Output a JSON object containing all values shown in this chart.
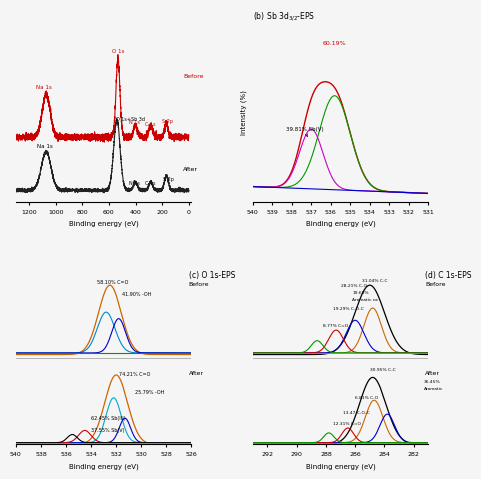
{
  "panel_a": {
    "before_color": "#cc0000",
    "after_color": "#222222",
    "before_label": "Before",
    "after_label": "After"
  },
  "panel_b": {
    "title": "(b) Sb 3d$_{3/2}$-EPS",
    "xlabel": "Binding energy (eV)",
    "ylabel": "Intensity (%)",
    "xlim": [
      540,
      531
    ],
    "colors": {
      "envelope": "#cc0000",
      "component1": "#009900",
      "component2": "#cc00cc",
      "background": "#0000cc"
    }
  },
  "panel_c": {
    "title": "(c) O 1s-EPS",
    "xlabel": "Binding energy (eV)",
    "xlim": [
      540,
      526
    ],
    "before_colors": {
      "envelope": "#cc6600",
      "component1": "#0088cc",
      "component2": "#0000cc",
      "background": "#009900"
    },
    "after_colors": {
      "envelope": "#cc6600",
      "component1": "#00aacc",
      "component2": "#0000cc",
      "component3": "#cc0000",
      "component4": "#000000",
      "background": "#00cccc"
    }
  },
  "panel_d": {
    "title": "(d) C 1s-EPS",
    "xlabel": "Binding energy (eV)",
    "xlim": [
      293,
      281
    ],
    "before_colors": {
      "envelope": "#000000",
      "component1": "#cc6600",
      "component2": "#0000cc",
      "component3": "#cc0000",
      "component4": "#009900"
    },
    "after_colors": {
      "envelope": "#000000",
      "component1": "#cc6600",
      "component2": "#0000cc",
      "component3": "#cc0000",
      "component4": "#009900"
    }
  },
  "bg_color": "#f5f5f5"
}
